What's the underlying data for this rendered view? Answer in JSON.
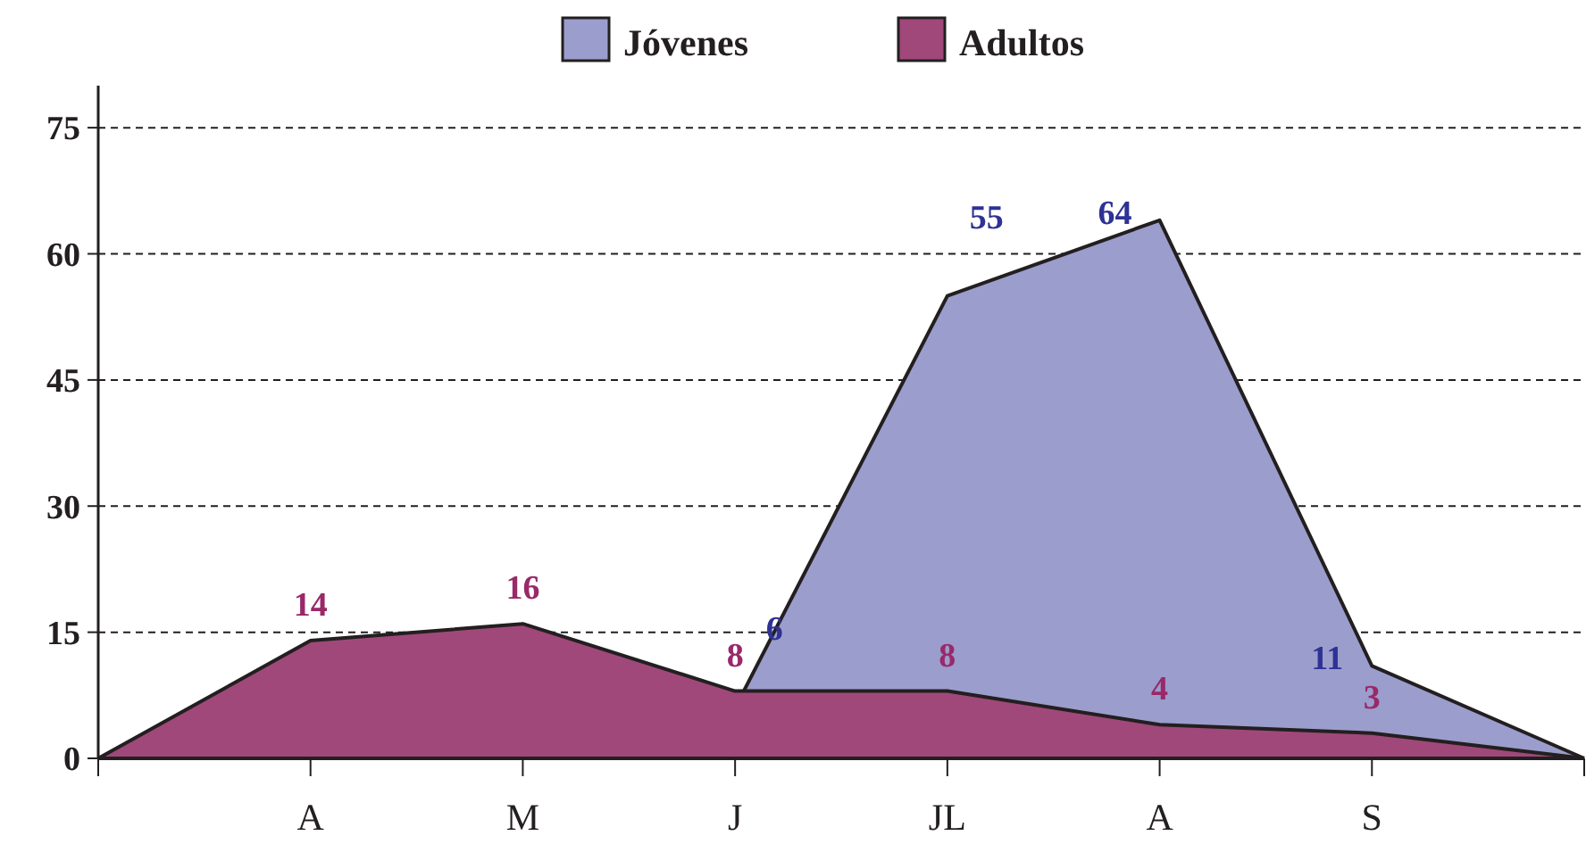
{
  "chart_data": {
    "type": "area",
    "categories": [
      null,
      "A",
      "M",
      "J",
      "JL",
      "A",
      "S",
      null
    ],
    "series": [
      {
        "name": "Jóvenes",
        "color": "#9b9dcc",
        "values": [
          null,
          null,
          null,
          6,
          55,
          64,
          11,
          0
        ],
        "value_labels": [
          null,
          null,
          null,
          "6",
          "55",
          "64",
          "11",
          null
        ]
      },
      {
        "name": "Adultos",
        "color": "#a0487a",
        "values": [
          0,
          14,
          16,
          8,
          8,
          4,
          3,
          0
        ],
        "value_labels": [
          null,
          "14",
          "16",
          "8",
          "8",
          "4",
          "3",
          null
        ]
      }
    ],
    "ylim": [
      0,
      80
    ],
    "yticks": [
      0,
      15,
      30,
      45,
      60,
      75
    ],
    "grid": "y",
    "legend": "top"
  }
}
